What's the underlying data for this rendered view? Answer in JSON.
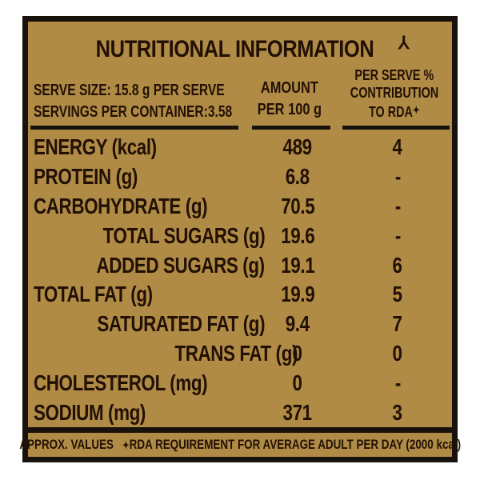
{
  "label": {
    "title": "NUTRITIONAL INFORMATION",
    "title_mark": "⅄",
    "header": {
      "serve_size_line1": "SERVE SIZE: 15.8 g PER SERVE",
      "serve_size_line2": "SERVINGS PER CONTAINER:3.58",
      "amount_col_line1": "AMOUNT",
      "amount_col_line2": "PER 100 g",
      "rda_col_line1": "PER SERVE %",
      "rda_col_line2": "CONTRIBUTION",
      "rda_col_line3": "TO RDA",
      "rda_col_mark": "✦"
    },
    "rows": [
      {
        "nutrient": "ENERGY (kcal)",
        "amount": "489",
        "rda": "4",
        "indent": 0
      },
      {
        "nutrient": "PROTEIN (g)",
        "amount": "6.8",
        "rda": "-",
        "indent": 0
      },
      {
        "nutrient": "CARBOHYDRATE (g)",
        "amount": "70.5",
        "rda": "-",
        "indent": 0
      },
      {
        "nutrient": "TOTAL SUGARS (g)",
        "amount": "19.6",
        "rda": "-",
        "indent": 1
      },
      {
        "nutrient": "ADDED SUGARS (g)",
        "amount": "19.1",
        "rda": "6",
        "indent": 1
      },
      {
        "nutrient": "TOTAL FAT (g)",
        "amount": "19.9",
        "rda": "5",
        "indent": 0
      },
      {
        "nutrient": "SATURATED FAT (g)",
        "amount": "9.4",
        "rda": "7",
        "indent": 1
      },
      {
        "nutrient": "TRANS FAT (g)",
        "amount": "0",
        "rda": "0",
        "indent": 2
      },
      {
        "nutrient": "CHOLESTEROL (mg)",
        "amount": "0",
        "rda": "-",
        "indent": 0
      },
      {
        "nutrient": "SODIUM (mg)",
        "amount": "371",
        "rda": "3",
        "indent": 0
      }
    ],
    "footer": {
      "left": "APPROX. VALUES",
      "note_mark": "✦",
      "note": "RDA REQUIREMENT FOR AVERAGE ADULT PER DAY (2000 kcal)"
    },
    "colors": {
      "background": "#b08b46",
      "text": "#221004",
      "border": "#17120b",
      "page": "#ffffff"
    }
  }
}
